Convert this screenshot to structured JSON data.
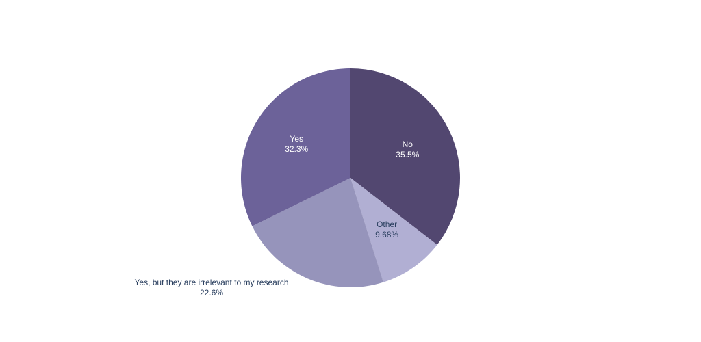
{
  "chart_data": {
    "type": "pie",
    "title": "",
    "slices": [
      {
        "label": "No",
        "percent_text": "35.5%",
        "value": 35.5,
        "color": "#524770",
        "label_color": "#ffffff",
        "label_position": "inside"
      },
      {
        "label": "Other",
        "percent_text": "9.68%",
        "value": 9.68,
        "color": "#b1afd3",
        "label_color": "#2a3f5f",
        "label_position": "inside"
      },
      {
        "label": "Yes, but they are irrelevant to my research",
        "percent_text": "22.6%",
        "value": 22.6,
        "color": "#9694bb",
        "label_color": "#2a3f5f",
        "label_position": "outside"
      },
      {
        "label": "Yes",
        "percent_text": "32.3%",
        "value": 32.3,
        "color": "#6c6299",
        "label_color": "#ffffff",
        "label_position": "inside"
      }
    ],
    "direction": "clockwise",
    "start": "12 o'clock",
    "legend": false
  }
}
